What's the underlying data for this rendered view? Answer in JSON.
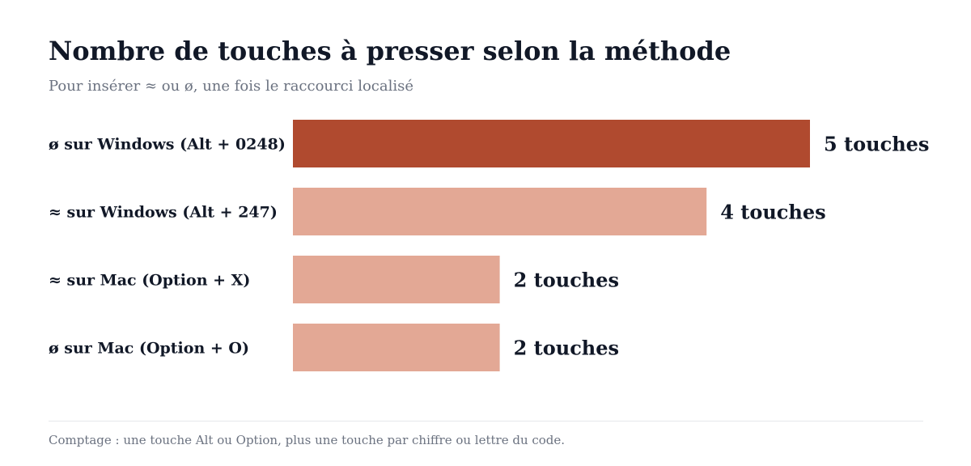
{
  "header": {
    "title": "Nombre de touches à presser selon la méthode",
    "subtitle": "Pour insérer ≈ ou ø, une fois le raccourci localisé"
  },
  "footer": {
    "note": "Comptage : une touche Alt ou Option, plus une touche par chiffre ou lettre du code."
  },
  "chart_data": {
    "type": "bar",
    "orientation": "horizontal",
    "categories": [
      "ø sur Windows (Alt + 0248)",
      "≈ sur Windows (Alt + 247)",
      "≈ sur Mac (Option + X)",
      "ø sur Mac (Option + O)"
    ],
    "values": [
      5,
      4,
      2,
      2
    ],
    "data_labels": [
      "5 touches",
      "4 touches",
      "2 touches",
      "2 touches"
    ],
    "xlim": [
      0,
      5
    ],
    "grid": false,
    "legend": "none",
    "colors": [
      "#b04a2f",
      "#e3a895",
      "#e3a895",
      "#e3a895"
    ]
  }
}
